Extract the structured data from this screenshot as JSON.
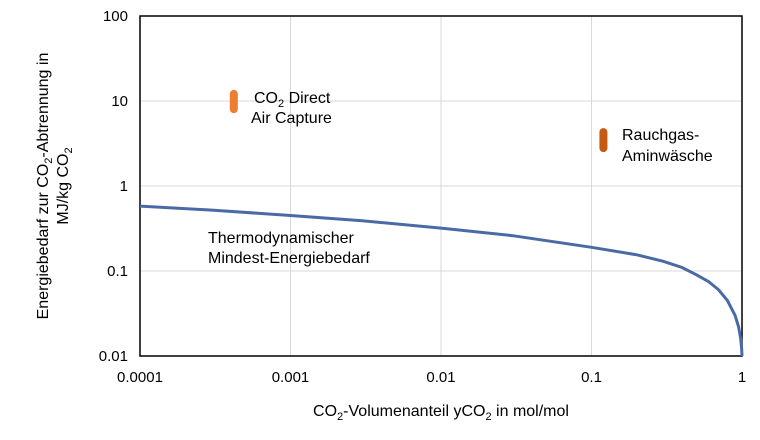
{
  "chart_data": {
    "type": "line",
    "x_scale": "log",
    "y_scale": "log",
    "xlim": [
      0.0001,
      1
    ],
    "ylim": [
      0.01,
      100
    ],
    "grid": true,
    "x_ticks": [
      "0.0001",
      "0.001",
      "0.01",
      "0.1",
      "1"
    ],
    "y_ticks": [
      "0.01",
      "0.1",
      "1",
      "10",
      "100"
    ],
    "xlabel": {
      "pre": "CO",
      "sub": "2",
      "mid": "-Volumenanteil yCO",
      "sub2": "2",
      "post": " in mol/mol"
    },
    "ylabel": {
      "line1_pre": "Energiebedarf zur CO",
      "line1_sub": "2",
      "line1_post": "-Abtrennung in",
      "line2_pre": "MJ/kg CO",
      "line2_sub": "2"
    },
    "series": [
      {
        "color": "#4a6aa5",
        "x": [
          0.0001,
          0.0003,
          0.001,
          0.003,
          0.01,
          0.03,
          0.1,
          0.2,
          0.3,
          0.4,
          0.5,
          0.6,
          0.7,
          0.8,
          0.9,
          0.95,
          0.98,
          0.995,
          1
        ],
        "y": [
          0.58,
          0.52,
          0.45,
          0.39,
          0.32,
          0.26,
          0.19,
          0.155,
          0.13,
          0.11,
          0.09,
          0.075,
          0.06,
          0.045,
          0.03,
          0.022,
          0.016,
          0.012,
          0.01
        ]
      }
    ],
    "ranges": [
      {
        "x": 0.00042,
        "y_low": 7.2,
        "y_high": 13.5,
        "color": "#ed7d31"
      },
      {
        "x": 0.12,
        "y_low": 2.5,
        "y_high": 4.8,
        "color": "#c55a11"
      }
    ],
    "annotations": [
      {
        "lines": [
          {
            "pre": "CO",
            "sub": "2",
            "post": " Direct"
          },
          {
            "pre": "Air Capture"
          }
        ]
      },
      {
        "lines": [
          {
            "pre": "Rauchgas-"
          },
          {
            "pre": "Aminwäsche"
          }
        ]
      },
      {
        "lines": [
          {
            "pre": "Thermodynamischer"
          },
          {
            "pre": "Mindest-Energiebedarf"
          }
        ]
      }
    ]
  }
}
